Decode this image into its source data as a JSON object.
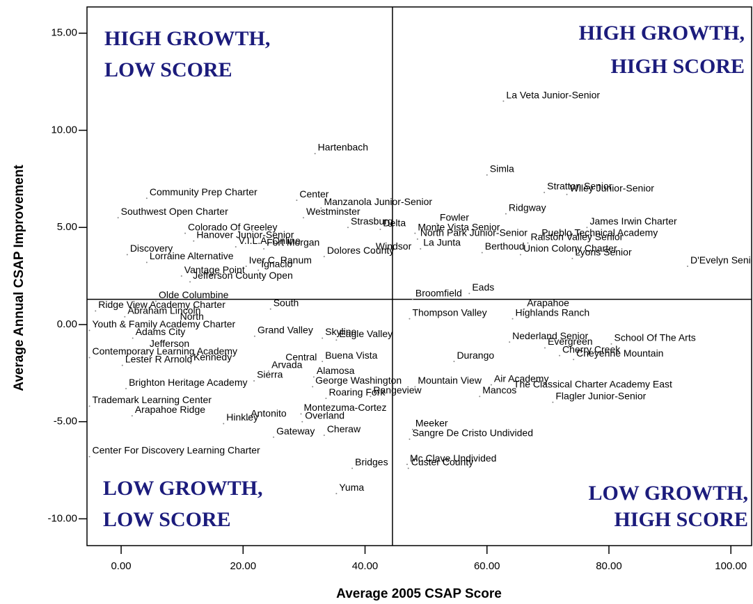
{
  "chart_data": {
    "type": "scatter",
    "xlabel": "Average 2005 CSAP Score",
    "ylabel": "Average Annual CSAP Improvement",
    "xlim": [
      -5.6,
      103.4
    ],
    "ylim": [
      -11.38,
      16.35
    ],
    "xticks": [
      {
        "value": 0,
        "label": "0.00"
      },
      {
        "value": 20,
        "label": "20.00"
      },
      {
        "value": 40,
        "label": "40.00"
      },
      {
        "value": 60,
        "label": "60.00"
      },
      {
        "value": 80,
        "label": "80.00"
      },
      {
        "value": 100,
        "label": "100.00"
      }
    ],
    "yticks": [
      {
        "value": -10,
        "label": "-10.00"
      },
      {
        "value": -5,
        "label": "-5.00"
      },
      {
        "value": 0,
        "label": "0.00"
      },
      {
        "value": 5,
        "label": "5.00"
      },
      {
        "value": 10,
        "label": "10.00"
      },
      {
        "value": 15,
        "label": "15.00"
      }
    ],
    "reference_lines": {
      "x": 44.5,
      "y": 1.3
    },
    "color": "#888888",
    "annotations": [
      {
        "lines": [
          "HIGH GROWTH,",
          "LOW SCORE"
        ],
        "corner": "top-left"
      },
      {
        "lines": [
          "HIGH GROWTH,",
          "HIGH SCORE"
        ],
        "corner": "top-right"
      },
      {
        "lines": [
          "LOW GROWTH,",
          "LOW SCORE"
        ],
        "corner": "bottom-left"
      },
      {
        "lines": [
          "LOW GROWTH,",
          "HIGH SCORE"
        ],
        "corner": "bottom-right"
      }
    ],
    "labels": [
      "La Veta Junior-Senior",
      "Hartenbach",
      "Simla",
      "Stratton Senior",
      "Wiley Junior-Senior",
      "Community Prep Charter",
      "Center",
      "Manzanola Junior-Senior",
      "Ridgway",
      "Southwest Open Charter",
      "Westminster",
      "Fowler",
      "Strasburg",
      "Delta",
      "James Irwin Charter",
      "Colorado Of Greeley",
      "Monte Vista Senior",
      "North Park Junior-Senior",
      "Pueblo Technical Academy",
      "Hanover Junior-Senior",
      "Ralston Valley Senior",
      "V.I.L.A. Online",
      "Fort Morgan",
      "La Junta",
      "Discovery",
      "Dolores County",
      "Windsor",
      "Berthoud",
      "Union Colony Charter",
      "Lorraine Alternative",
      "Lyons Senior",
      "Iver C. Ranum",
      "D'Evelyn Senior",
      "Ignacio",
      "Vantage Point",
      "Jefferson County Open",
      "Olde Columbine",
      "Ridge View Academy Charter",
      "Abraham Lincoln",
      "South",
      "North",
      "Broomfield",
      "Eads",
      "Arapahoe",
      "Highlands Ranch",
      "Thompson Valley",
      "Youth & Family Academy Charter",
      "Adams City",
      "Grand Valley",
      "Skyline",
      "Eagle Valley",
      "Nederland Senior",
      "School Of The Arts",
      "Evergreen",
      "Jefferson",
      "Contemporary Learning Academy",
      "Cherry Creek",
      "Cheyenne Mountain",
      "Kennedy",
      "Lester R Arnold",
      "Central",
      "Buena Vista",
      "Durango",
      "Arvada",
      "Alamosa",
      "Sierra",
      "Air Academy",
      "Brighton Heritage Academy",
      "George Washington",
      "Mountain View",
      "The Classical Charter Academy East",
      "Roaring Fork",
      "Rangeview",
      "Mancos",
      "Trademark Learning Center",
      "Flagler Junior-Senior",
      "Montezuma-Cortez",
      "Arapahoe Ridge",
      "Antonito",
      "Overland",
      "Hinkley",
      "Meeker",
      "Gateway",
      "Cheraw",
      "Sangre De Cristo Undivided",
      "Center For Discovery Learning Charter",
      "Mc Clave Undivided",
      "Custer County",
      "Bridges",
      "Yuma"
    ],
    "x": [
      62.7,
      31.8,
      60.0,
      69.4,
      73.1,
      4.2,
      28.8,
      32.8,
      63.1,
      -0.5,
      29.9,
      51.8,
      37.2,
      42.5,
      76.4,
      10.5,
      48.2,
      48.6,
      68.5,
      11.9,
      66.7,
      18.8,
      23.4,
      49.1,
      1.0,
      33.3,
      41.3,
      59.2,
      65.5,
      4.2,
      74.0,
      20.5,
      92.9,
      22.5,
      9.9,
      11.3,
      5.7,
      -4.2,
      0.6,
      24.5,
      9.2,
      47.8,
      57.1,
      66.1,
      64.2,
      47.3,
      -5.2,
      1.9,
      21.9,
      33.0,
      35.3,
      63.7,
      80.4,
      69.5,
      4.2,
      -5.2,
      71.9,
      74.2,
      11.4,
      0.2,
      26.5,
      33.0,
      54.6,
      24.2,
      31.6,
      21.8,
      60.7,
      0.8,
      31.4,
      48.2,
      63.9,
      33.6,
      40.9,
      58.8,
      -5.2,
      70.8,
      29.5,
      1.8,
      20.8,
      29.7,
      16.8,
      47.8,
      25.0,
      33.3,
      47.3,
      -5.2,
      46.9,
      47.1,
      37.9,
      35.3
    ],
    "values": [
      11.5,
      8.8,
      7.7,
      6.8,
      6.7,
      6.5,
      6.4,
      6.0,
      5.7,
      5.5,
      5.5,
      5.2,
      5.0,
      4.9,
      5.0,
      4.7,
      4.7,
      4.4,
      4.4,
      4.3,
      4.2,
      4.0,
      3.9,
      3.9,
      3.6,
      3.5,
      3.7,
      3.7,
      3.6,
      3.2,
      3.4,
      3.0,
      3.0,
      2.8,
      2.5,
      2.2,
      1.2,
      0.7,
      0.4,
      0.8,
      0.1,
      1.3,
      1.6,
      0.8,
      0.3,
      0.3,
      -0.3,
      -0.7,
      -0.6,
      -0.7,
      -0.8,
      -0.9,
      -1.0,
      -1.2,
      -1.3,
      -1.7,
      -1.6,
      -1.8,
      -2.0,
      -2.1,
      -2.0,
      -1.9,
      -1.9,
      -2.4,
      -2.7,
      -2.9,
      -3.1,
      -3.3,
      -3.2,
      -3.2,
      -3.4,
      -3.8,
      -3.7,
      -3.7,
      -4.2,
      -4.0,
      -4.6,
      -4.7,
      -4.9,
      -5.0,
      -5.1,
      -5.4,
      -5.8,
      -5.7,
      -5.9,
      -6.8,
      -7.2,
      -7.4,
      -7.4,
      -8.7
    ]
  }
}
